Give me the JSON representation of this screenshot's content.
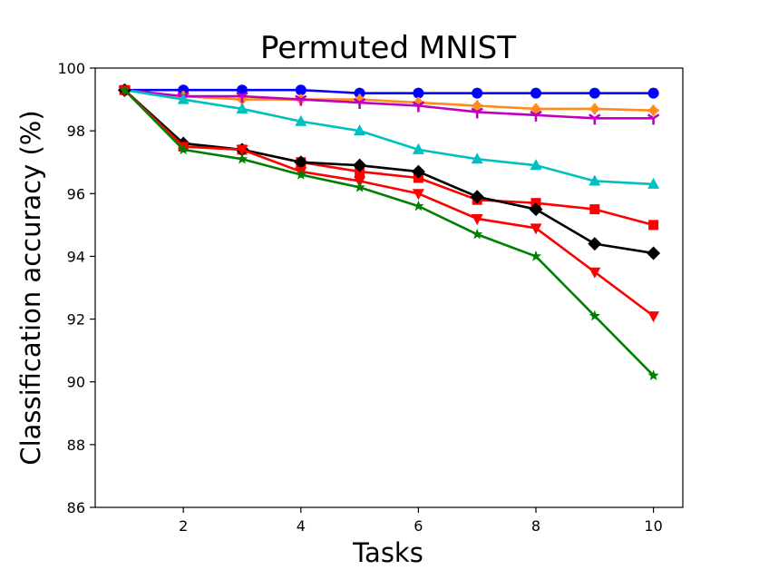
{
  "chart_data": {
    "type": "line",
    "title": "Permuted MNIST",
    "xlabel": "Tasks",
    "ylabel": "Classification accuracy (%)",
    "xlim": [
      0.5,
      10.5
    ],
    "ylim": [
      86,
      100
    ],
    "xticks": [
      2,
      4,
      6,
      8,
      10
    ],
    "yticks": [
      86,
      88,
      90,
      92,
      94,
      96,
      98,
      100
    ],
    "grid": false,
    "x": [
      1,
      2,
      3,
      4,
      5,
      6,
      7,
      8,
      9,
      10
    ],
    "series": [
      {
        "color": "#0000ff",
        "marker": "circle",
        "values": [
          99.3,
          99.3,
          99.3,
          99.3,
          99.2,
          99.2,
          99.2,
          99.2,
          99.2,
          99.2
        ]
      },
      {
        "color": "#ff8c1a",
        "marker": "plus",
        "values": [
          99.3,
          99.1,
          99.0,
          99.0,
          99.0,
          98.9,
          98.8,
          98.7,
          98.7,
          98.65
        ]
      },
      {
        "color": "#bf00bf",
        "marker": "tri_down",
        "values": [
          99.3,
          99.1,
          99.1,
          99.0,
          98.9,
          98.8,
          98.6,
          98.5,
          98.4,
          98.4
        ]
      },
      {
        "color": "#00bfbf",
        "marker": "triangle_up",
        "values": [
          99.3,
          99.0,
          98.7,
          98.3,
          98.0,
          97.4,
          97.1,
          96.9,
          96.4,
          96.3
        ]
      },
      {
        "color": "#ff0000",
        "marker": "square",
        "values": [
          99.3,
          97.5,
          97.4,
          97.0,
          96.7,
          96.5,
          95.8,
          95.7,
          95.5,
          95.0
        ]
      },
      {
        "color": "#000000",
        "marker": "diamond",
        "values": [
          99.3,
          97.6,
          97.4,
          97.0,
          96.9,
          96.7,
          95.9,
          95.5,
          94.4,
          94.1
        ]
      },
      {
        "color": "#ff0000",
        "marker": "triangle_down",
        "values": [
          99.3,
          97.5,
          97.4,
          96.7,
          96.4,
          96.0,
          95.2,
          94.9,
          93.5,
          92.1
        ]
      },
      {
        "color": "#008000",
        "marker": "star",
        "values": [
          99.3,
          97.4,
          97.1,
          96.6,
          96.2,
          95.6,
          94.7,
          94.0,
          92.1,
          90.2
        ]
      }
    ]
  }
}
